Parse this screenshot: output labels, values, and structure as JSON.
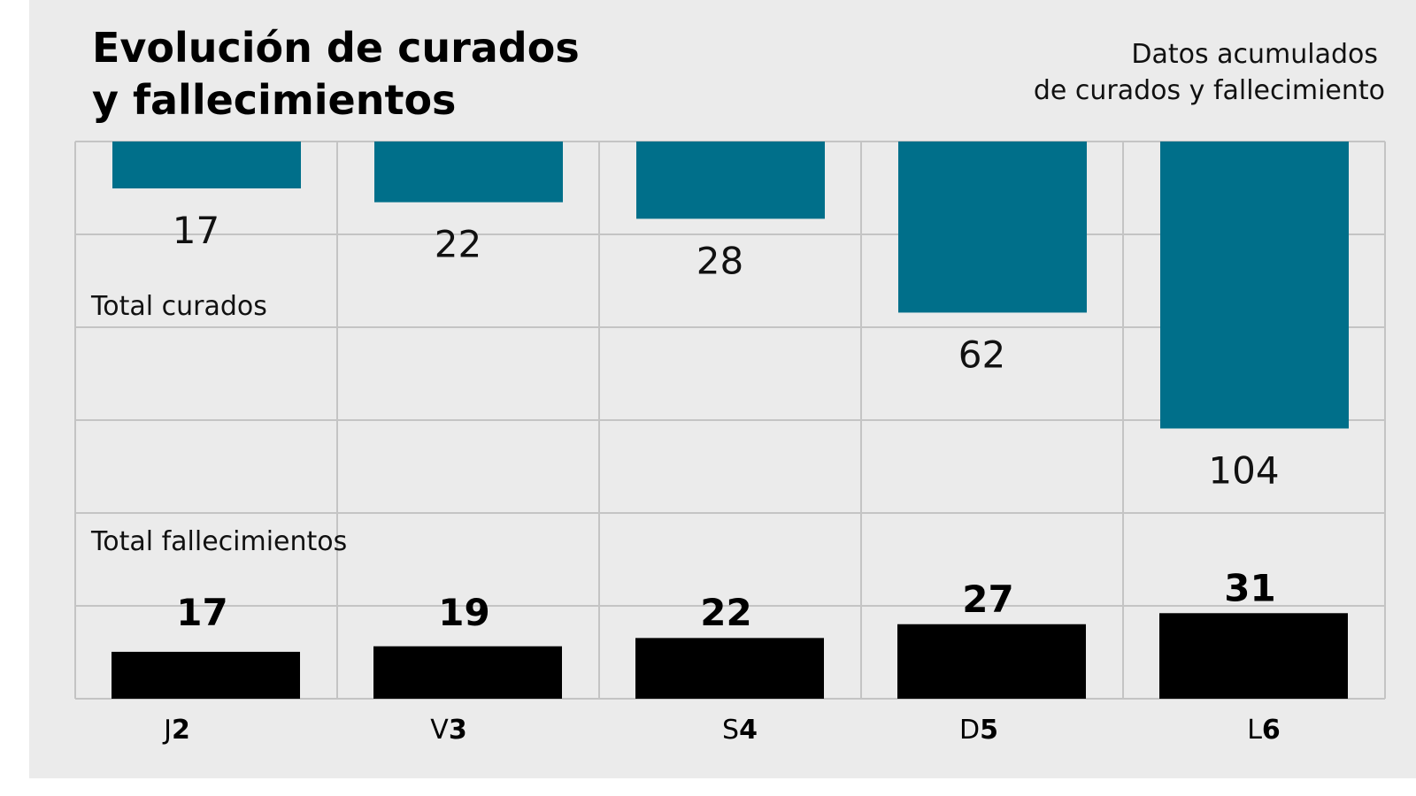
{
  "chart_data": {
    "type": "bar",
    "title": "Evolución de curados y fallecimientos",
    "title_lines": [
      "Evolución de curados",
      "y fallecimientos"
    ],
    "subtitle_lines": [
      "Datos acumulados",
      "de curados y fallecimiento"
    ],
    "categories": [
      {
        "day": "J",
        "num": "2"
      },
      {
        "day": "V",
        "num": "3"
      },
      {
        "day": "S",
        "num": "4"
      },
      {
        "day": "D",
        "num": "5"
      },
      {
        "day": "L",
        "num": "6"
      }
    ],
    "series": [
      {
        "name": "Total curados",
        "values": [
          17,
          22,
          28,
          62,
          104
        ],
        "color": "#006f8a",
        "direction": "down-from-top"
      },
      {
        "name": "Total fallecimientos",
        "values": [
          17,
          19,
          22,
          27,
          31
        ],
        "color": "#000000",
        "direction": "up-from-bottom"
      }
    ],
    "grid": true,
    "colors": {
      "background": "#ebebeb",
      "grid": "#c4c4c4"
    }
  }
}
